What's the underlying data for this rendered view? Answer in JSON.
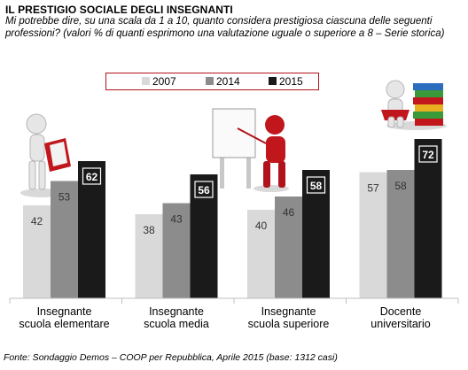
{
  "chart_data": {
    "type": "bar",
    "title": "IL PRESTIGIO SOCIALE DEGLI INSEGNANTI",
    "subtitle": "Mi potrebbe dire, su una scala da 1 a 10, quanto considera prestigiosa ciascuna delle seguenti professioni? (valori % di quanti esprimono una valutazione uguale o superiore a 8 – Serie storica)",
    "categories": [
      [
        "Insegnante",
        "scuola elementare"
      ],
      [
        "Insegnante",
        "scuola media"
      ],
      [
        "Insegnante",
        "scuola superiore"
      ],
      [
        "Docente",
        "universitario"
      ]
    ],
    "series": [
      {
        "name": "2007",
        "values": [
          42,
          38,
          40,
          57
        ],
        "color": "#d9d9d9"
      },
      {
        "name": "2014",
        "values": [
          53,
          43,
          46,
          58
        ],
        "color": "#8c8c8c"
      },
      {
        "name": "2015",
        "values": [
          62,
          56,
          58,
          72
        ],
        "color": "#1a1a1a"
      }
    ],
    "ylim": [
      0,
      100
    ],
    "grid": false,
    "legend": "top",
    "data_labels": true,
    "source": "Fonte: Sondaggio Demos – COOP per Repubblica, Aprile 2015 (base: 1312 casi)"
  },
  "legend_border_color": "#b0131b",
  "illustrations": [
    "person-reading-book-icon",
    "person-at-whiteboard-icon",
    "person-with-books-icon"
  ]
}
